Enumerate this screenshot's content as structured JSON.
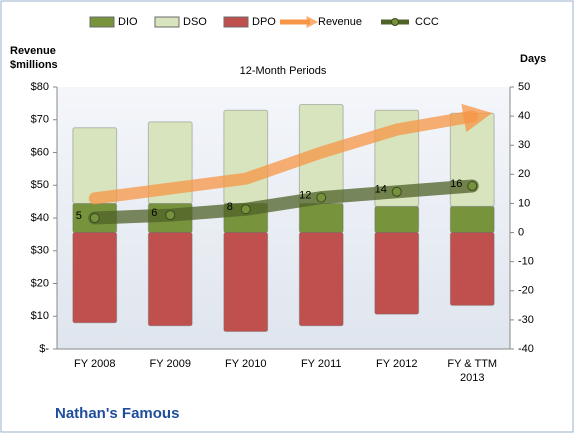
{
  "chart_data": {
    "type": "combo",
    "title": "12-Month Periods",
    "ylabel": "Revenue $millions",
    "y2label": "Days",
    "footer": "Nathan's Famous",
    "categories": [
      "FY 2008",
      "FY 2009",
      "FY 2010",
      "FY 2011",
      "FY 2012",
      "FY & TTM 2013"
    ],
    "series": [
      {
        "name": "DIO",
        "type": "bar",
        "axis": "y2",
        "color": "#77933c",
        "values": [
          10,
          10,
          10,
          10,
          9,
          9
        ]
      },
      {
        "name": "DSO",
        "type": "bar",
        "axis": "y2",
        "color": "#d7e4bd",
        "values": [
          26,
          28,
          32,
          34,
          33,
          32
        ]
      },
      {
        "name": "DPO",
        "type": "bar",
        "axis": "y2",
        "color": "#c0504d",
        "values": [
          -31,
          -32,
          -34,
          -32,
          -28,
          -25
        ]
      },
      {
        "name": "Revenue",
        "type": "line",
        "axis": "y",
        "color": "#f79646",
        "values": [
          46,
          49,
          52,
          60,
          67,
          71
        ]
      },
      {
        "name": "CCC",
        "type": "line",
        "axis": "y2",
        "color": "#4f6228",
        "values": [
          5,
          6,
          8,
          12,
          14,
          16
        ]
      }
    ],
    "ylim": [
      0,
      80
    ],
    "yticks": [
      {
        "value": 0,
        "label": "$-"
      },
      {
        "value": 10,
        "label": "$10"
      },
      {
        "value": 20,
        "label": "$20"
      },
      {
        "value": 30,
        "label": "$30"
      },
      {
        "value": 40,
        "label": "$40"
      },
      {
        "value": 50,
        "label": "$50"
      },
      {
        "value": 60,
        "label": "$60"
      },
      {
        "value": 70,
        "label": "$70"
      },
      {
        "value": 80,
        "label": "$80"
      }
    ],
    "y2lim": [
      -40,
      50
    ],
    "y2ticks": [
      -40,
      -30,
      -20,
      -10,
      0,
      10,
      20,
      30,
      40,
      50
    ],
    "grid": false
  }
}
